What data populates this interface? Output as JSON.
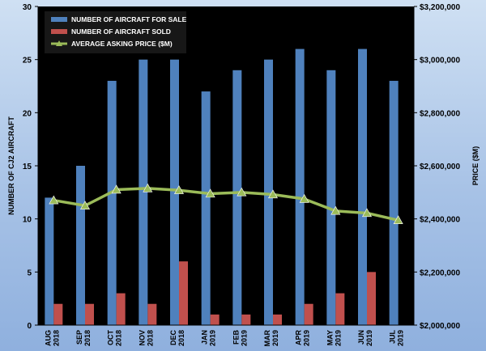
{
  "chart_data": {
    "type": "bar",
    "categories": [
      [
        "AUG",
        "2018"
      ],
      [
        "SEP",
        "2018"
      ],
      [
        "OCT",
        "2018"
      ],
      [
        "NOV",
        "2018"
      ],
      [
        "DEC",
        "2018"
      ],
      [
        "JAN",
        "2019"
      ],
      [
        "FEB",
        "2019"
      ],
      [
        "MAR",
        "2019"
      ],
      [
        "APR",
        "2019"
      ],
      [
        "MAY",
        "2019"
      ],
      [
        "JUN",
        "2019"
      ],
      [
        "JUL",
        "2019"
      ]
    ],
    "series": [
      {
        "name": "NUMBER OF AIRCRAFT FOR SALE",
        "kind": "bar",
        "axis": "left",
        "color": "#4f81bd",
        "values": [
          12,
          15,
          23,
          25,
          25,
          22,
          24,
          25,
          26,
          24,
          26,
          23
        ]
      },
      {
        "name": "NUMBER OF AIRCRAFT SOLD",
        "kind": "bar",
        "axis": "left",
        "color": "#c0504d",
        "values": [
          2,
          2,
          3,
          2,
          6,
          1,
          1,
          1,
          2,
          3,
          5,
          0
        ]
      },
      {
        "name": "AVERAGE ASKING PRICE ($M)",
        "kind": "line",
        "axis": "right",
        "color": "#9bbb59",
        "values": [
          2470000,
          2450000,
          2510000,
          2515000,
          2508000,
          2495000,
          2500000,
          2492000,
          2475000,
          2430000,
          2422000,
          2395000
        ]
      }
    ],
    "ylabel": "NUMBER OF CJ2 AIRCRAFT",
    "y2label": "PRICE ($M)",
    "ylim": [
      0,
      30
    ],
    "yticks": [
      "0",
      "5",
      "10",
      "15",
      "20",
      "25",
      "30"
    ],
    "y2lim": [
      2000000,
      3200000
    ],
    "y2ticks": [
      "$2,000,000",
      "$2,200,000",
      "$2,400,000",
      "$2,600,000",
      "$2,800,000",
      "$3,000,000",
      "$3,200,000"
    ],
    "plot_background": "#000000",
    "legend_position": "top-left",
    "grid": false
  }
}
